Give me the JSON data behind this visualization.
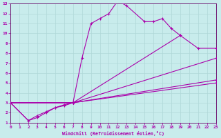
{
  "background_color": "#c8ecec",
  "grid_color": "#b0d8d8",
  "line_color": "#aa00aa",
  "xlabel": "Windchill (Refroidissement éolien,°C)",
  "xmin": 0,
  "xmax": 23,
  "ymin": 1,
  "ymax": 13,
  "line0": {
    "x": [
      0,
      2,
      3,
      4,
      5,
      6,
      7,
      8,
      9,
      10,
      11,
      12,
      13,
      15,
      16,
      17,
      18,
      19
    ],
    "y": [
      3.0,
      1.2,
      1.5,
      2.0,
      2.5,
      2.7,
      3.0,
      7.5,
      11.0,
      11.5,
      12.0,
      13.3,
      12.8,
      11.2,
      11.2,
      11.5,
      10.5,
      9.8
    ]
  },
  "line1": {
    "x": [
      0,
      7,
      19,
      21,
      23
    ],
    "y": [
      3.0,
      3.0,
      9.8,
      8.5,
      8.5
    ]
  },
  "line2": {
    "x": [
      0,
      7,
      23
    ],
    "y": [
      3.0,
      3.0,
      7.5
    ]
  },
  "line3": {
    "x": [
      0,
      7,
      23
    ],
    "y": [
      3.0,
      3.0,
      5.3
    ]
  },
  "line4": {
    "x": [
      0,
      2,
      3,
      4,
      5,
      6,
      7,
      23
    ],
    "y": [
      3.0,
      1.2,
      1.7,
      2.1,
      2.5,
      2.8,
      3.0,
      5.0
    ]
  }
}
